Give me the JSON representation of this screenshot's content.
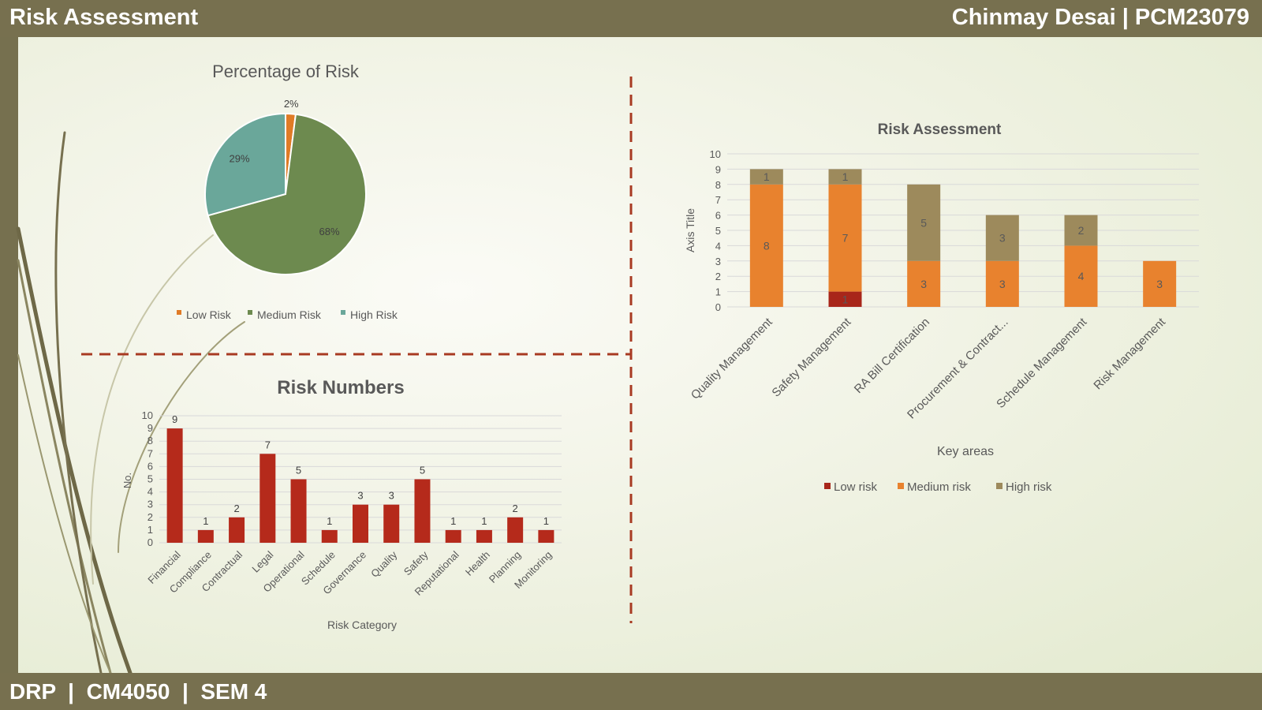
{
  "header": {
    "title": "Risk Assessment",
    "author": "Chinmay Desai | PCM23079"
  },
  "footer": {
    "text": "DRP  |  CM4050  |  SEM 4"
  },
  "colors": {
    "low_pie": "#e07b26",
    "medium_pie": "#6d8a4f",
    "high_pie": "#6aa79a",
    "bar_red": "#b52a1b",
    "low_risk": "#a8261a",
    "medium_risk": "#e8822e",
    "high_risk": "#9d8a5c",
    "divider": "#a83a22",
    "bar_frame": "#77704f"
  },
  "chart_data": [
    {
      "type": "pie",
      "title": "Percentage of Risk",
      "categories": [
        "Low Risk",
        "Medium Risk",
        "High Risk"
      ],
      "values": [
        2,
        68,
        29
      ],
      "labels": [
        "2%",
        "68%",
        "29%"
      ],
      "legend_position": "bottom"
    },
    {
      "type": "bar",
      "title": "Risk Numbers",
      "xlabel": "Risk Category",
      "ylabel": "No.",
      "ylim": [
        0,
        10
      ],
      "yticks": [
        0,
        1,
        2,
        3,
        4,
        5,
        6,
        7,
        8,
        9,
        10
      ],
      "categories": [
        "Financial",
        "Compliance",
        "Contractual",
        "Legal",
        "Operational",
        "Schedule",
        "Governance",
        "Quality",
        "Safety",
        "Reputational",
        "Health",
        "Planning",
        "Monitoring"
      ],
      "values": [
        9,
        1,
        2,
        7,
        5,
        1,
        3,
        3,
        5,
        1,
        1,
        2,
        1
      ],
      "grid": true
    },
    {
      "type": "bar",
      "stacked": true,
      "title": "Risk Assessment",
      "xlabel": "Key areas",
      "ylabel": "Axis Title",
      "ylim": [
        0,
        10
      ],
      "yticks": [
        0,
        1,
        2,
        3,
        4,
        5,
        6,
        7,
        8,
        9,
        10
      ],
      "categories": [
        "Quality Management",
        "Safety Management",
        "RA Bill Certification",
        "Procurement & Contract...",
        "Schedule Management",
        "Risk Management"
      ],
      "series": [
        {
          "name": "Low risk",
          "values": [
            0,
            1,
            0,
            0,
            0,
            0
          ]
        },
        {
          "name": "Medium risk",
          "values": [
            8,
            7,
            3,
            3,
            4,
            3
          ]
        },
        {
          "name": "High risk",
          "values": [
            1,
            1,
            5,
            3,
            2,
            0
          ]
        }
      ],
      "legend_position": "bottom",
      "grid": true
    }
  ]
}
